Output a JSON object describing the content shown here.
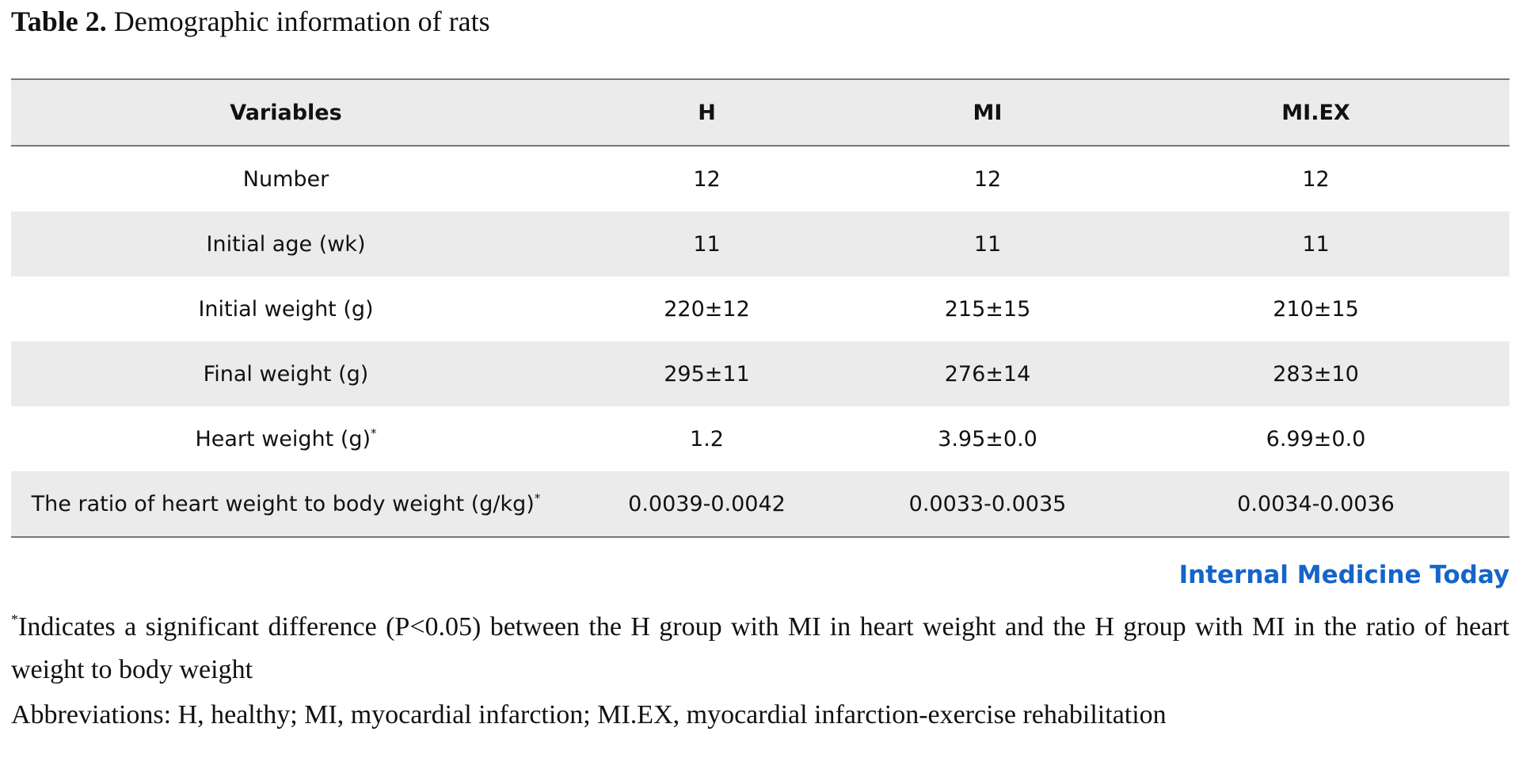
{
  "caption": {
    "label": "Table 2.",
    "title": "Demographic information of rats"
  },
  "table": {
    "headers": [
      "Variables",
      "H",
      "MI",
      "MI.EX"
    ],
    "rows": [
      {
        "variable": "Number",
        "marker": "",
        "h": "12",
        "mi": "12",
        "miex": "12"
      },
      {
        "variable": "Initial age (wk)",
        "marker": "",
        "h": "11",
        "mi": "11",
        "miex": "11"
      },
      {
        "variable": "Initial weight (g)",
        "marker": "",
        "h": "220±12",
        "mi": "215±15",
        "miex": "210±15"
      },
      {
        "variable": "Final weight (g)",
        "marker": "",
        "h": "295±11",
        "mi": "276±14",
        "miex": "283±10"
      },
      {
        "variable": "Heart weight (g)",
        "marker": "*",
        "h": "1.2",
        "mi": "3.95±0.0",
        "miex": "6.99±0.0"
      },
      {
        "variable": "The ratio of heart weight to body weight (g/kg)",
        "marker": "*",
        "h": "0.0039-0.0042",
        "mi": "0.0033-0.0035",
        "miex": "0.0034-0.0036"
      }
    ]
  },
  "brand": "Internal Medicine Today",
  "footnotes": {
    "significance_marker": "*",
    "significance_text": "Indicates a significant difference (P<0.05) between the H group with MI in heart weight and the H group with MI in the ratio of heart weight to body weight",
    "abbreviations": "Abbreviations: H, healthy; MI, myocardial infarction; MI.EX, myocardial infarction-exercise rehabilitation"
  },
  "colors": {
    "brand": "#1565c8",
    "band": "#ebebeb",
    "rule": "#777777"
  }
}
